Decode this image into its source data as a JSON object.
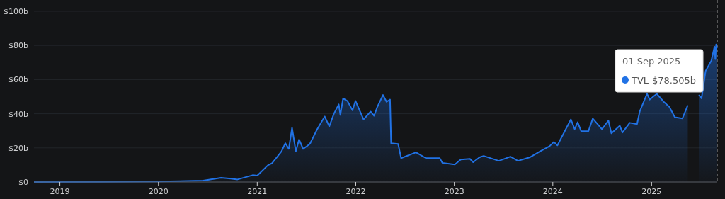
{
  "chart_data": {
    "type": "area",
    "x": [
      "2018-09-27",
      "2019-06-01",
      "2020-01-01",
      "2020-06-15",
      "2020-08-20",
      "2020-09-25",
      "2020-10-20",
      "2020-12-15",
      "2021-01-01",
      "2021-02-10",
      "2021-02-25",
      "2021-03-15",
      "2021-04-01",
      "2021-04-15",
      "2021-04-28",
      "2021-05-10",
      "2021-05-24",
      "2021-06-05",
      "2021-06-20",
      "2021-07-15",
      "2021-08-10",
      "2021-09-08",
      "2021-09-25",
      "2021-10-12",
      "2021-10-30",
      "2021-11-05",
      "2021-11-15",
      "2021-12-01",
      "2021-12-20",
      "2021-12-31",
      "2022-01-30",
      "2022-02-25",
      "2022-03-10",
      "2022-03-22",
      "2022-04-12",
      "2022-04-25",
      "2022-05-08",
      "2022-05-12",
      "2022-06-07",
      "2022-06-18",
      "2022-08-12",
      "2022-09-18",
      "2022-11-08",
      "2022-11-18",
      "2023-01-03",
      "2023-01-25",
      "2023-02-28",
      "2023-03-12",
      "2023-04-05",
      "2023-04-20",
      "2023-06-15",
      "2023-07-28",
      "2023-08-25",
      "2023-10-08",
      "2023-11-15",
      "2023-12-20",
      "2024-01-05",
      "2024-01-18",
      "2024-02-05",
      "2024-03-08",
      "2024-03-22",
      "2024-04-02",
      "2024-04-15",
      "2024-05-12",
      "2024-05-28",
      "2024-07-01",
      "2024-07-25",
      "2024-08-05",
      "2024-09-05",
      "2024-09-15",
      "2024-10-12",
      "2024-11-08",
      "2024-11-18",
      "2024-12-15",
      "2024-12-25",
      "2025-01-20",
      "2025-02-15",
      "2025-03-08",
      "2025-03-28",
      "2025-04-25",
      "2025-05-15",
      "2025-05-28",
      "2025-06-25",
      "2025-07-05",
      "2025-07-20",
      "2025-08-10",
      "2025-08-22",
      "2025-08-25",
      "2025-08-28",
      "2025-09-01"
    ],
    "series": [
      {
        "name": "TVL",
        "color": "#2172e5",
        "values": [
          0,
          0.1,
          0.3,
          0.8,
          2.5,
          2.0,
          1.5,
          4,
          3.7,
          9.9,
          11,
          14.6,
          18,
          22.8,
          19.4,
          31.8,
          18,
          24.9,
          19.4,
          22.3,
          30.6,
          38.4,
          32.6,
          40,
          45.5,
          39.3,
          49,
          47.5,
          42,
          47.5,
          36.7,
          41.3,
          38.8,
          44,
          51,
          47,
          48.3,
          22.7,
          22.3,
          14,
          17.4,
          14,
          14,
          11.2,
          10.3,
          13.2,
          13.6,
          11.6,
          14.5,
          15.3,
          12.4,
          14.9,
          12.4,
          14.5,
          18,
          21,
          23.5,
          21.5,
          27,
          36.7,
          31,
          35,
          29.8,
          29.8,
          37.2,
          31,
          36,
          28.5,
          33,
          29,
          34.7,
          33.9,
          41.3,
          51.7,
          48.3,
          51.7,
          47,
          44,
          38,
          37.2,
          45,
          null,
          51,
          49,
          65,
          71,
          79.3,
          72,
          80.6,
          78.5
        ]
      }
    ],
    "xlim": [
      "2018-09-27",
      "2025-09-01"
    ],
    "xticks": [
      "2019",
      "2020",
      "2021",
      "2022",
      "2023",
      "2024",
      "2025"
    ],
    "ylim": [
      0,
      100
    ],
    "yticks": [
      {
        "value": 0,
        "label": "$0"
      },
      {
        "value": 20,
        "label": "$20b"
      },
      {
        "value": 40,
        "label": "$40b"
      },
      {
        "value": 60,
        "label": "$60b"
      },
      {
        "value": 80,
        "label": "$80b"
      },
      {
        "value": 100,
        "label": "$100b"
      }
    ],
    "grid": "y",
    "legend": "top right",
    "ref_lines": [
      {
        "axis": "x",
        "value": "2025-09-01",
        "label": null,
        "color": "#9a9a9a",
        "line_style": "dashed"
      }
    ],
    "annotations": [
      "01 Sep 2025",
      "$78.505b"
    ]
  }
}
